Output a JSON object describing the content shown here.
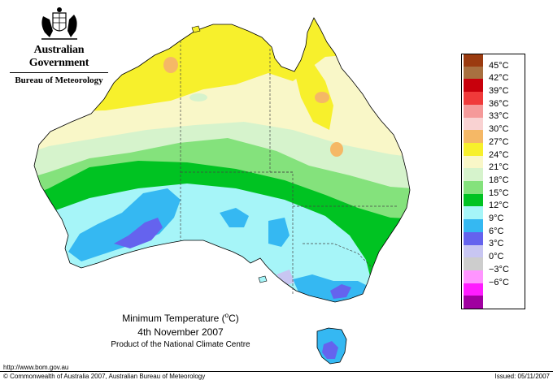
{
  "header": {
    "gov_title": "Australian Government",
    "bureau_title": "Bureau of Meteorology"
  },
  "caption": {
    "title_pre": "Minimum Temperature (",
    "title_unit": "o",
    "title_post": "C)",
    "date": "4th November 2007",
    "product": "Product of the National Climate Centre"
  },
  "footer": {
    "url": "http://www.bom.gov.au",
    "copyright": "© Commonwealth of Australia 2007, Australian Bureau of Meteorology",
    "issued": "Issued: 05/11/2007"
  },
  "legend": [
    {
      "label": "45°C",
      "color": "#9b3b10"
    },
    {
      "label": "42°C",
      "color": "#a87040"
    },
    {
      "label": "39°C",
      "color": "#c8000c"
    },
    {
      "label": "36°C",
      "color": "#f03a3a"
    },
    {
      "label": "33°C",
      "color": "#f59a9a"
    },
    {
      "label": "30°C",
      "color": "#f9d2d2"
    },
    {
      "label": "27°C",
      "color": "#f5b866"
    },
    {
      "label": "24°C",
      "color": "#f7f02c"
    },
    {
      "label": "21°C",
      "color": "#f9f7c8"
    },
    {
      "label": "18°C",
      "color": "#d6f3cc"
    },
    {
      "label": "15°C",
      "color": "#84e27c"
    },
    {
      "label": "12°C",
      "color": "#00c322"
    },
    {
      "label": "9°C",
      "color": "#a6f5f8"
    },
    {
      "label": "6°C",
      "color": "#35b8f2"
    },
    {
      "label": "3°C",
      "color": "#6563ee"
    },
    {
      "label": "0°C",
      "color": "#c8c6f2"
    },
    {
      "label": "−3°C",
      "color": "#cdcdcd"
    },
    {
      "label": "−6°C",
      "color": "#ff95ff"
    },
    {
      "label": "",
      "color": "#ff1cff"
    },
    {
      "label": "",
      "color": "#a000a0"
    }
  ]
}
